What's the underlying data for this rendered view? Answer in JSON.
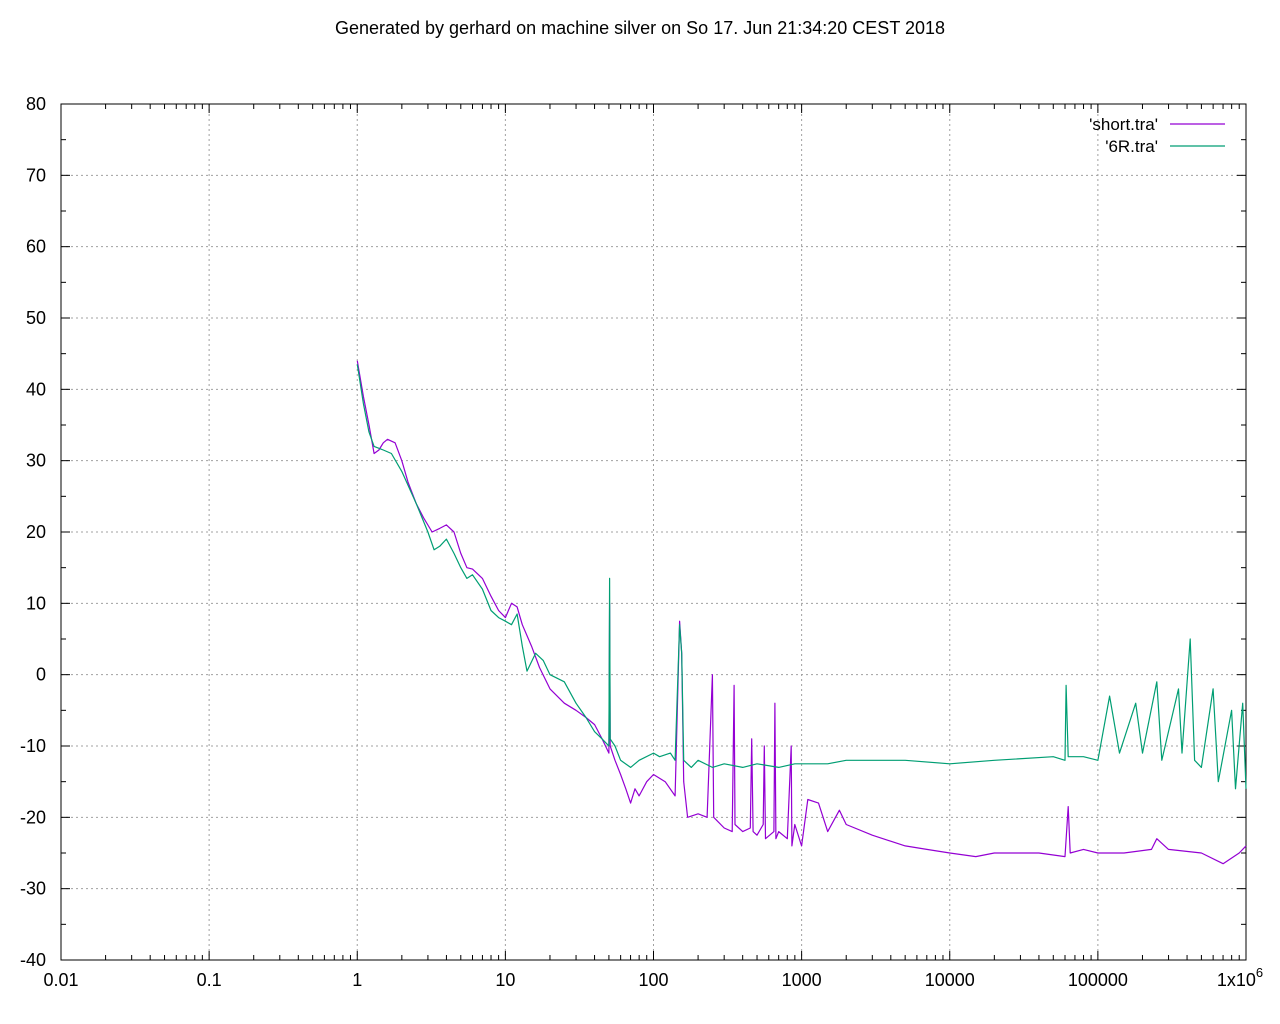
{
  "header": {
    "title": "Generated by gerhard on machine silver on So 17. Jun 21:34:20 CEST 2018"
  },
  "chart_data": {
    "type": "line",
    "title": "Generated by gerhard on machine silver on So 17. Jun 21:34:20 CEST 2018",
    "xlabel": "",
    "ylabel": "",
    "xscale": "log",
    "xlim": [
      0.01,
      1000000
    ],
    "ylim": [
      -40,
      80
    ],
    "grid": true,
    "legend_position": "top-right",
    "x_tick_labels": [
      "0.01",
      "0.1",
      "1",
      "10",
      "100",
      "1000",
      "10000",
      "100000",
      "1x10^6"
    ],
    "x_tick_values": [
      0.01,
      0.1,
      1,
      10,
      100,
      1000,
      10000,
      100000,
      1000000
    ],
    "y_tick_labels": [
      "-40",
      "-30",
      "-20",
      "-10",
      "0",
      "10",
      "20",
      "30",
      "40",
      "50",
      "60",
      "70",
      "80"
    ],
    "y_tick_values": [
      -40,
      -30,
      -20,
      -10,
      0,
      10,
      20,
      30,
      40,
      50,
      60,
      70,
      80
    ],
    "series": [
      {
        "name": "'short.tra'",
        "color": "#9400d3",
        "points": [
          [
            1,
            44
          ],
          [
            1.1,
            39
          ],
          [
            1.2,
            35
          ],
          [
            1.3,
            31
          ],
          [
            1.4,
            31.5
          ],
          [
            1.5,
            32.5
          ],
          [
            1.6,
            33
          ],
          [
            1.8,
            32.5
          ],
          [
            2,
            30
          ],
          [
            2.2,
            27
          ],
          [
            2.5,
            24
          ],
          [
            2.8,
            22
          ],
          [
            3.2,
            20
          ],
          [
            3.6,
            20.5
          ],
          [
            4,
            21
          ],
          [
            4.5,
            20
          ],
          [
            5,
            17
          ],
          [
            5.5,
            15
          ],
          [
            6,
            14.8
          ],
          [
            7,
            13.5
          ],
          [
            8,
            11
          ],
          [
            9,
            9
          ],
          [
            10,
            8
          ],
          [
            11,
            10
          ],
          [
            12,
            9.5
          ],
          [
            13,
            7
          ],
          [
            15,
            4
          ],
          [
            17,
            1
          ],
          [
            20,
            -2
          ],
          [
            25,
            -4
          ],
          [
            30,
            -5
          ],
          [
            35,
            -6
          ],
          [
            40,
            -7
          ],
          [
            45,
            -9
          ],
          [
            50,
            -11
          ],
          [
            50.5,
            10
          ],
          [
            51,
            -10
          ],
          [
            55,
            -12
          ],
          [
            60,
            -14
          ],
          [
            65,
            -16
          ],
          [
            70,
            -18
          ],
          [
            75,
            -16
          ],
          [
            80,
            -17
          ],
          [
            90,
            -15
          ],
          [
            100,
            -14
          ],
          [
            120,
            -15
          ],
          [
            140,
            -17
          ],
          [
            150,
            7.5
          ],
          [
            155,
            3
          ],
          [
            160,
            -15
          ],
          [
            170,
            -20
          ],
          [
            200,
            -19.5
          ],
          [
            230,
            -20
          ],
          [
            250,
            0
          ],
          [
            255,
            -20
          ],
          [
            300,
            -21.5
          ],
          [
            340,
            -22
          ],
          [
            350,
            -1.5
          ],
          [
            355,
            -21
          ],
          [
            400,
            -22
          ],
          [
            450,
            -21.5
          ],
          [
            460,
            -9
          ],
          [
            470,
            -22
          ],
          [
            500,
            -22.5
          ],
          [
            550,
            -21
          ],
          [
            560,
            -10
          ],
          [
            570,
            -23
          ],
          [
            650,
            -22
          ],
          [
            660,
            -4
          ],
          [
            670,
            -23
          ],
          [
            700,
            -22
          ],
          [
            800,
            -23
          ],
          [
            850,
            -10
          ],
          [
            860,
            -24
          ],
          [
            900,
            -21
          ],
          [
            1000,
            -24
          ],
          [
            1100,
            -17.5
          ],
          [
            1300,
            -18
          ],
          [
            1500,
            -22
          ],
          [
            1800,
            -19
          ],
          [
            2000,
            -21
          ],
          [
            3000,
            -22.5
          ],
          [
            5000,
            -24
          ],
          [
            7000,
            -24.5
          ],
          [
            10000,
            -25
          ],
          [
            15000,
            -25.5
          ],
          [
            20000,
            -25
          ],
          [
            40000,
            -25
          ],
          [
            60000,
            -25.5
          ],
          [
            63000,
            -18.5
          ],
          [
            65000,
            -25
          ],
          [
            80000,
            -24.5
          ],
          [
            100000,
            -25
          ],
          [
            150000,
            -25
          ],
          [
            230000,
            -24.5
          ],
          [
            250000,
            -23
          ],
          [
            300000,
            -24.5
          ],
          [
            500000,
            -25
          ],
          [
            700000,
            -26.5
          ],
          [
            900000,
            -25
          ],
          [
            1000000,
            -24
          ]
        ]
      },
      {
        "name": "'6R.tra'",
        "color": "#009e73",
        "points": [
          [
            1,
            43.5
          ],
          [
            1.1,
            38
          ],
          [
            1.2,
            34
          ],
          [
            1.3,
            32
          ],
          [
            1.5,
            31.5
          ],
          [
            1.7,
            31
          ],
          [
            2,
            28.5
          ],
          [
            2.5,
            24
          ],
          [
            3,
            20
          ],
          [
            3.3,
            17.5
          ],
          [
            3.6,
            18
          ],
          [
            4,
            19
          ],
          [
            4.5,
            17
          ],
          [
            5,
            15
          ],
          [
            5.5,
            13.5
          ],
          [
            6,
            14
          ],
          [
            7,
            12
          ],
          [
            8,
            9
          ],
          [
            9,
            8
          ],
          [
            10,
            7.5
          ],
          [
            11,
            7
          ],
          [
            12,
            8.5
          ],
          [
            13,
            4
          ],
          [
            14,
            0.5
          ],
          [
            16,
            3
          ],
          [
            18,
            2
          ],
          [
            20,
            0
          ],
          [
            25,
            -1
          ],
          [
            30,
            -4
          ],
          [
            35,
            -6
          ],
          [
            40,
            -8
          ],
          [
            45,
            -9
          ],
          [
            50,
            -10
          ],
          [
            50.5,
            13.5
          ],
          [
            51,
            -9
          ],
          [
            55,
            -10
          ],
          [
            60,
            -12
          ],
          [
            70,
            -13
          ],
          [
            80,
            -12
          ],
          [
            100,
            -11
          ],
          [
            110,
            -11.5
          ],
          [
            130,
            -11
          ],
          [
            140,
            -12
          ],
          [
            150,
            7
          ],
          [
            155,
            3
          ],
          [
            160,
            -12
          ],
          [
            180,
            -13
          ],
          [
            200,
            -12
          ],
          [
            250,
            -13
          ],
          [
            300,
            -12.5
          ],
          [
            400,
            -13
          ],
          [
            500,
            -12.5
          ],
          [
            700,
            -13
          ],
          [
            900,
            -12.5
          ],
          [
            1000,
            -12.5
          ],
          [
            1500,
            -12.5
          ],
          [
            2000,
            -12
          ],
          [
            5000,
            -12
          ],
          [
            10000,
            -12.5
          ],
          [
            20000,
            -12
          ],
          [
            50000,
            -11.5
          ],
          [
            60000,
            -12
          ],
          [
            61000,
            -1.5
          ],
          [
            63000,
            -11.5
          ],
          [
            80000,
            -11.5
          ],
          [
            100000,
            -12
          ],
          [
            120000,
            -3
          ],
          [
            140000,
            -11
          ],
          [
            180000,
            -4
          ],
          [
            200000,
            -11
          ],
          [
            250000,
            -1
          ],
          [
            270000,
            -12
          ],
          [
            350000,
            -2
          ],
          [
            370000,
            -11
          ],
          [
            420000,
            5
          ],
          [
            450000,
            -12
          ],
          [
            500000,
            -13
          ],
          [
            600000,
            -2
          ],
          [
            650000,
            -15
          ],
          [
            800000,
            -5
          ],
          [
            850000,
            -16
          ],
          [
            950000,
            -4
          ],
          [
            1000000,
            -16
          ]
        ]
      }
    ]
  }
}
